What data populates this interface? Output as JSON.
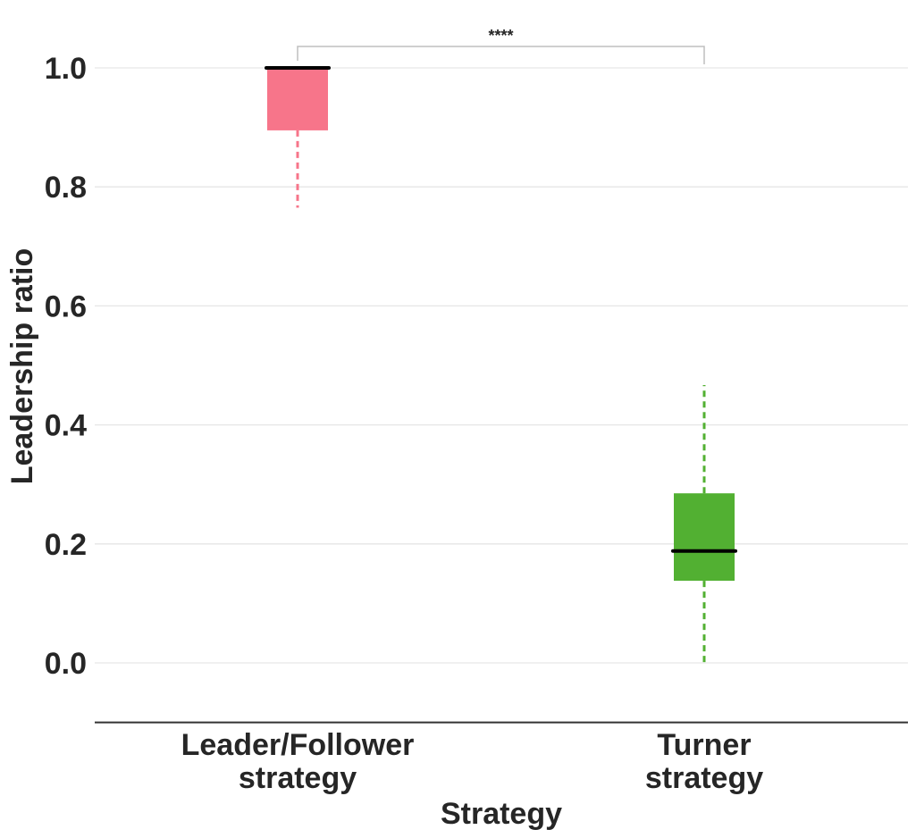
{
  "chart_data": {
    "type": "box",
    "xlabel": "Strategy",
    "ylabel": "Leadership ratio",
    "ylim": [
      -0.1,
      1.1
    ],
    "yticks": [
      0.0,
      0.2,
      0.4,
      0.6,
      0.8,
      1.0
    ],
    "ytick_labels": [
      "0.0",
      "0.2",
      "0.4",
      "0.6",
      "0.8",
      "1.0"
    ],
    "grid": "horizontal",
    "categories": [
      [
        "Leader/Follower",
        "strategy"
      ],
      [
        "Turner",
        "strategy"
      ]
    ],
    "boxes": [
      {
        "q1": 0.895,
        "median": 1.0,
        "q3": 1.0,
        "whisker_low": 0.765,
        "whisker_high": 1.0,
        "color": "#f7758a"
      },
      {
        "q1": 0.138,
        "median": 0.188,
        "q3": 0.285,
        "whisker_low": 0.0,
        "whisker_high": 0.467,
        "color": "#52b032"
      }
    ],
    "annotations": [
      {
        "from": 0,
        "to": 1,
        "text": "****"
      }
    ],
    "colors": {
      "grid": "#e6e6e6",
      "axis": "#333333",
      "text": "#262626",
      "bracket": "#bfbfbf",
      "median": "#000000"
    }
  }
}
